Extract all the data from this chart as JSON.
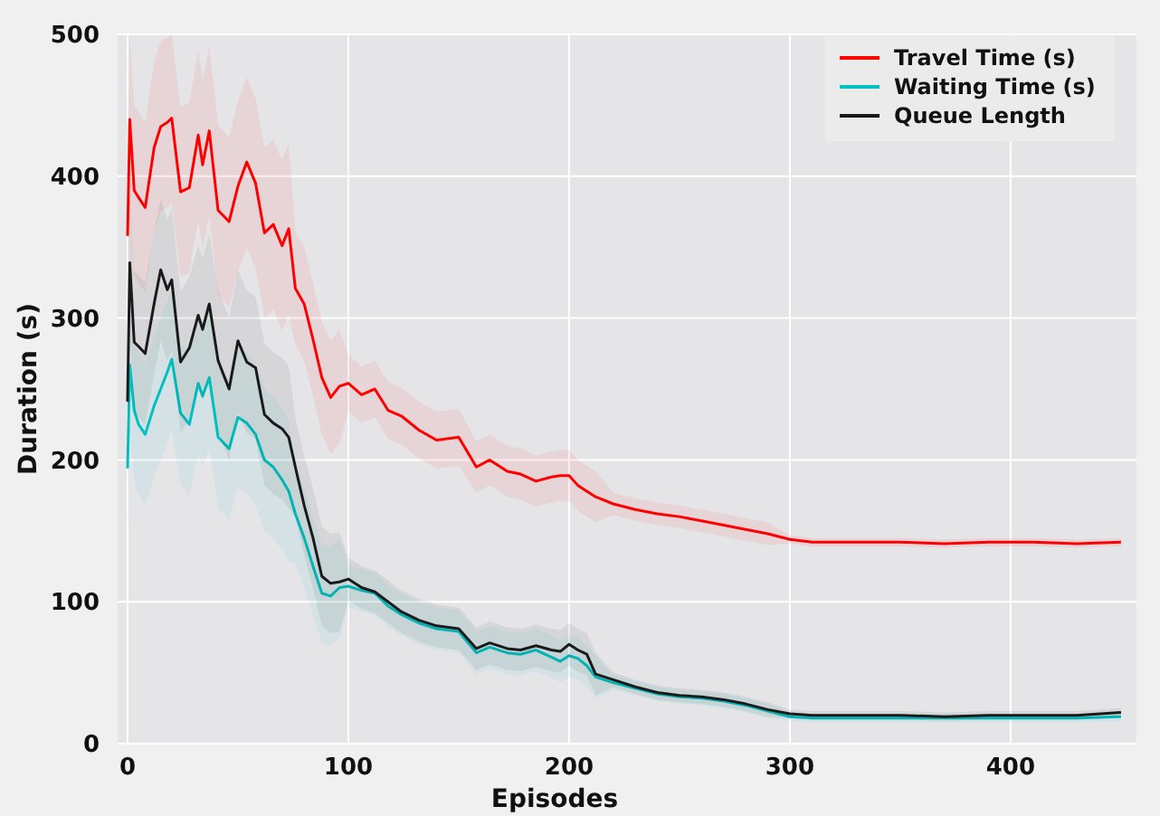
{
  "chart_data": {
    "type": "line",
    "xlabel": "Episodes",
    "ylabel": "Duration (s)",
    "xlim": [
      -4.5,
      457
    ],
    "ylim": [
      0,
      500
    ],
    "xticks": [
      0,
      100,
      200,
      300,
      400
    ],
    "yticks": [
      0,
      100,
      200,
      300,
      400,
      500
    ],
    "grid": true,
    "legend": "top right",
    "marker": "none",
    "line_style": "solid",
    "x": [
      0,
      1,
      3,
      5,
      8,
      12,
      15,
      18,
      20,
      24,
      28,
      32,
      34,
      37,
      41,
      46,
      50,
      54,
      58,
      62,
      66,
      70,
      73,
      76,
      80,
      84,
      88,
      92,
      96,
      100,
      106,
      112,
      118,
      124,
      132,
      140,
      150,
      158,
      164,
      172,
      178,
      185,
      192,
      196,
      200,
      204,
      208,
      212,
      220,
      230,
      240,
      250,
      260,
      270,
      280,
      290,
      300,
      310,
      330,
      350,
      370,
      390,
      410,
      430,
      450
    ],
    "series": [
      {
        "name": "Travel Time (s)",
        "color": "#ff0000",
        "values": [
          358,
          440,
          390,
          385,
          378,
          420,
          435,
          438,
          441,
          389,
          392,
          429,
          408,
          432,
          376,
          368,
          393,
          410,
          395,
          360,
          366,
          351,
          363,
          321,
          310,
          285,
          258,
          244,
          252,
          254,
          246,
          250,
          235,
          231,
          221,
          214,
          216,
          195,
          200,
          192,
          190,
          185,
          188,
          189,
          189,
          182,
          178,
          174,
          169,
          165,
          162,
          160,
          157,
          154,
          151,
          148,
          144,
          142,
          142,
          142,
          141,
          142,
          142,
          141,
          142
        ],
        "lower": [
          298,
          380,
          330,
          325,
          318,
          360,
          375,
          378,
          381,
          329,
          332,
          369,
          348,
          372,
          316,
          308,
          333,
          350,
          335,
          300,
          306,
          291,
          303,
          281,
          270,
          245,
          218,
          204,
          212,
          234,
          226,
          230,
          215,
          211,
          201,
          194,
          196,
          177,
          182,
          174,
          172,
          167,
          170,
          171,
          171,
          164,
          160,
          156,
          161,
          157,
          154,
          152,
          149,
          146,
          143,
          140,
          141,
          139,
          139,
          139,
          138,
          139,
          139,
          138,
          139
        ],
        "upper": [
          418,
          500,
          450,
          445,
          438,
          480,
          495,
          498,
          500,
          449,
          452,
          489,
          468,
          492,
          436,
          428,
          453,
          470,
          455,
          420,
          426,
          411,
          423,
          361,
          350,
          325,
          298,
          284,
          292,
          274,
          266,
          270,
          255,
          251,
          241,
          234,
          236,
          213,
          218,
          210,
          208,
          203,
          206,
          207,
          207,
          200,
          196,
          192,
          177,
          173,
          170,
          168,
          165,
          162,
          159,
          156,
          147,
          145,
          145,
          145,
          144,
          145,
          145,
          144,
          145
        ]
      },
      {
        "name": "Waiting Time (s)",
        "color": "#00c0c0",
        "values": [
          194,
          267,
          235,
          225,
          218,
          238,
          250,
          262,
          271,
          233,
          225,
          254,
          245,
          258,
          216,
          208,
          230,
          226,
          218,
          200,
          195,
          186,
          178,
          162,
          145,
          125,
          106,
          104,
          110,
          111,
          108,
          106,
          97,
          91,
          85,
          81,
          79,
          64,
          68,
          64,
          63,
          66,
          61,
          58,
          62,
          60,
          55,
          47,
          43,
          39,
          35,
          33,
          32,
          30,
          27,
          23,
          19,
          18,
          18,
          18,
          18,
          18,
          18,
          18,
          19
        ],
        "lower": [
          144,
          217,
          185,
          175,
          168,
          188,
          200,
          212,
          221,
          183,
          175,
          204,
          195,
          208,
          166,
          158,
          180,
          176,
          168,
          150,
          145,
          136,
          128,
          127,
          110,
          90,
          71,
          69,
          75,
          96,
          93,
          91,
          82,
          76,
          70,
          66,
          64,
          49,
          53,
          49,
          48,
          51,
          46,
          43,
          47,
          45,
          40,
          32,
          38,
          34,
          30,
          28,
          27,
          25,
          22,
          18,
          16,
          15,
          15,
          15,
          15,
          15,
          15,
          15,
          16
        ],
        "upper": [
          244,
          317,
          285,
          275,
          268,
          288,
          300,
          312,
          321,
          283,
          275,
          304,
          295,
          308,
          266,
          258,
          280,
          276,
          268,
          250,
          245,
          236,
          228,
          197,
          180,
          160,
          141,
          139,
          145,
          126,
          123,
          121,
          112,
          106,
          100,
          96,
          94,
          79,
          83,
          79,
          78,
          81,
          76,
          73,
          77,
          75,
          70,
          62,
          48,
          44,
          40,
          38,
          37,
          35,
          32,
          28,
          22,
          21,
          21,
          21,
          21,
          21,
          21,
          21,
          22
        ]
      },
      {
        "name": "Queue Length",
        "color": "#1a1a1a",
        "values": [
          241,
          339,
          283,
          280,
          275,
          310,
          334,
          320,
          327,
          269,
          279,
          302,
          292,
          310,
          270,
          250,
          284,
          269,
          265,
          232,
          226,
          222,
          216,
          195,
          168,
          145,
          118,
          113,
          114,
          116,
          110,
          107,
          100,
          93,
          87,
          83,
          81,
          67,
          71,
          67,
          66,
          69,
          66,
          65,
          70,
          66,
          63,
          49,
          45,
          40,
          36,
          34,
          33,
          31,
          28,
          24,
          21,
          20,
          20,
          20,
          19,
          20,
          20,
          20,
          22
        ],
        "lower": [
          191,
          289,
          233,
          230,
          225,
          260,
          284,
          270,
          277,
          219,
          229,
          252,
          242,
          260,
          220,
          200,
          234,
          219,
          215,
          182,
          176,
          172,
          166,
          160,
          133,
          110,
          83,
          78,
          79,
          101,
          95,
          92,
          85,
          78,
          72,
          68,
          66,
          52,
          56,
          52,
          51,
          54,
          51,
          50,
          55,
          51,
          48,
          34,
          40,
          35,
          31,
          29,
          28,
          26,
          23,
          19,
          18,
          17,
          17,
          17,
          16,
          17,
          17,
          17,
          19
        ],
        "upper": [
          291,
          389,
          333,
          330,
          325,
          360,
          384,
          370,
          377,
          319,
          329,
          352,
          342,
          360,
          320,
          300,
          334,
          319,
          315,
          282,
          276,
          272,
          266,
          230,
          203,
          180,
          153,
          148,
          149,
          131,
          125,
          122,
          115,
          108,
          102,
          98,
          96,
          82,
          86,
          82,
          81,
          84,
          81,
          80,
          85,
          81,
          78,
          64,
          50,
          45,
          41,
          39,
          38,
          36,
          33,
          29,
          24,
          23,
          23,
          23,
          22,
          23,
          23,
          23,
          25
        ]
      }
    ]
  }
}
